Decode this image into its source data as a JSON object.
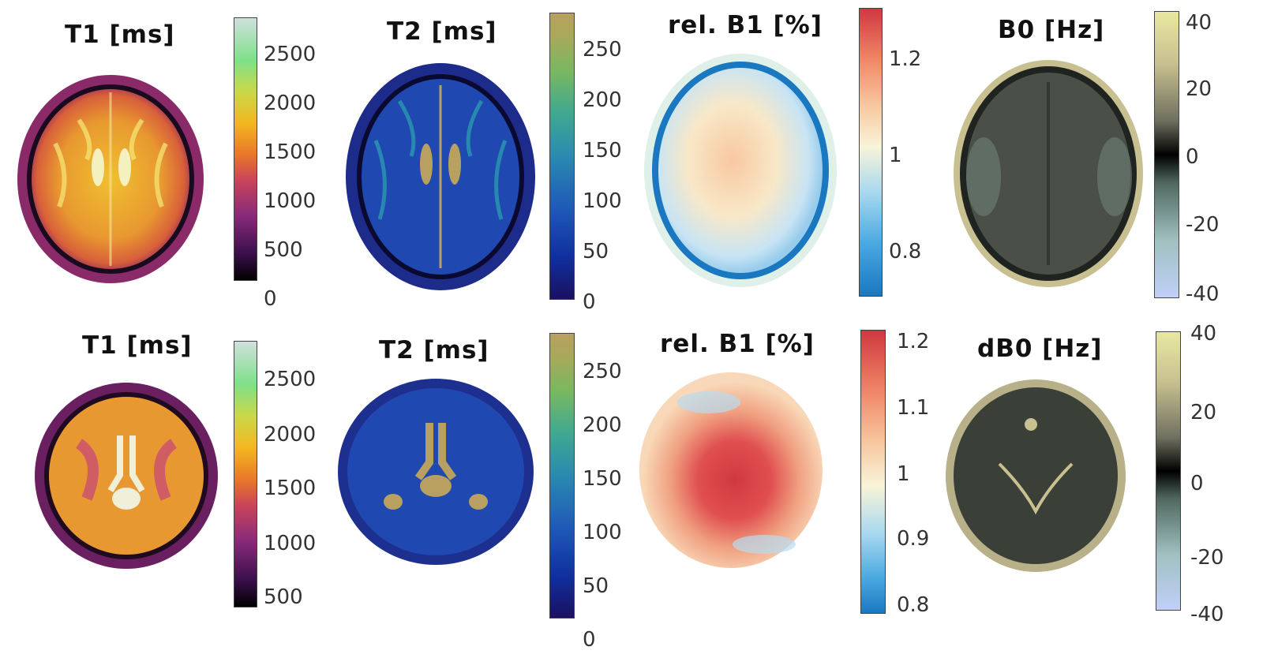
{
  "rows": [
    {
      "panels": [
        {
          "title": "T1 [ms]",
          "ticks": [
            "2500",
            "2000",
            "1500",
            "1000",
            "500",
            "0"
          ]
        },
        {
          "title": "T2 [ms]",
          "ticks": [
            "250",
            "200",
            "150",
            "100",
            "50",
            "0"
          ]
        },
        {
          "title": "rel. B1 [%]",
          "ticks": [
            "1.2",
            "1",
            "0.8"
          ]
        },
        {
          "title": "B0 [Hz]",
          "ticks": [
            "40",
            "20",
            "0",
            "-20",
            "-40"
          ]
        }
      ]
    },
    {
      "panels": [
        {
          "title": "T1 [ms]",
          "ticks": [
            "2500",
            "2000",
            "1500",
            "1000",
            "500"
          ]
        },
        {
          "title": "T2 [ms]",
          "ticks": [
            "250",
            "200",
            "150",
            "100",
            "50",
            "0"
          ]
        },
        {
          "title": "rel. B1 [%]",
          "ticks": [
            "1.2",
            "1.1",
            "1",
            "0.9",
            "0.8"
          ]
        },
        {
          "title": "dB0 [Hz]",
          "ticks": [
            "40",
            "20",
            "0",
            "-20",
            "-40"
          ]
        }
      ]
    }
  ],
  "colormaps": {
    "t1": [
      "#000000",
      "#3a0f4a",
      "#8a2b7a",
      "#c8445a",
      "#e8782a",
      "#f3b720",
      "#c9d84a",
      "#7fe08a",
      "#cfe0dc"
    ],
    "t2": [
      "#1a1060",
      "#1030a0",
      "#1f5ab8",
      "#2a8ab0",
      "#40a890",
      "#7ab860",
      "#a8a85a",
      "#b8a060"
    ],
    "b1": [
      "#1a78c0",
      "#48a8e0",
      "#a8d8f0",
      "#f8f4d8",
      "#f8c8a0",
      "#f08868",
      "#d03840"
    ],
    "b0": [
      "#c0d0f8",
      "#a0c0c0",
      "#506860",
      "#000000",
      "#707060",
      "#c8c090",
      "#e8e8a0"
    ]
  }
}
